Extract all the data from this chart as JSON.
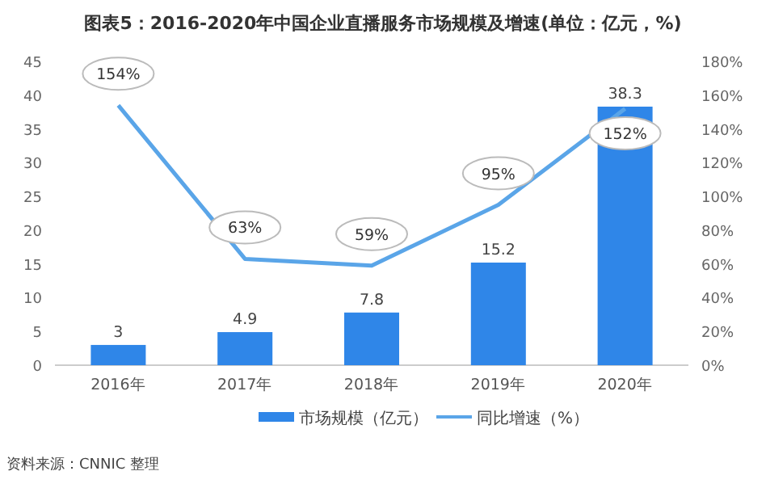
{
  "chart_data": {
    "type": "bar",
    "title": "图表5：2016-2020年中国企业直播服务市场规模及增速(单位：亿元，%)",
    "categories": [
      "2016年",
      "2017年",
      "2018年",
      "2019年",
      "2020年"
    ],
    "series": [
      {
        "name": "市场规模（亿元）",
        "color": "#2f86e8",
        "values": [
          3,
          4.9,
          7.8,
          15.2,
          38.3
        ],
        "value_labels": [
          "3",
          "4.9",
          "7.8",
          "15.2",
          "38.3"
        ]
      },
      {
        "name": "同比增速（%）",
        "type": "line",
        "axis": "y2",
        "color": "#5aa5e8",
        "values": [
          154,
          63,
          59,
          95,
          152
        ],
        "value_labels": [
          "154%",
          "63%",
          "59%",
          "95%",
          "152%"
        ]
      }
    ],
    "ylim": [
      0,
      45
    ],
    "yticks": [
      0,
      5,
      10,
      15,
      20,
      25,
      30,
      35,
      40,
      45
    ],
    "y2lim": [
      0,
      180
    ],
    "y2ticks": [
      {
        "value": 0,
        "label": "0%"
      },
      {
        "value": 20,
        "label": "20%"
      },
      {
        "value": 40,
        "label": "40%"
      },
      {
        "value": 60,
        "label": "60%"
      },
      {
        "value": 80,
        "label": "80%"
      },
      {
        "value": 100,
        "label": "100%"
      },
      {
        "value": 120,
        "label": "120%"
      },
      {
        "value": 140,
        "label": "140%"
      },
      {
        "value": 160,
        "label": "160%"
      },
      {
        "value": 180,
        "label": "180%"
      }
    ],
    "legend": "bottom",
    "marker": "none",
    "line_style": "solid",
    "annotations": [
      "资料来源：CNNIC 整理"
    ]
  }
}
